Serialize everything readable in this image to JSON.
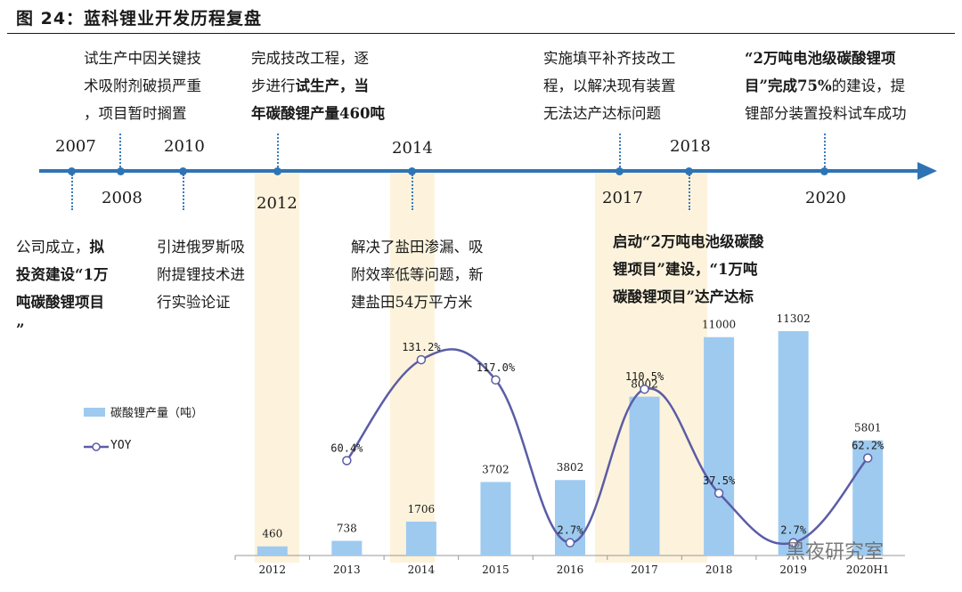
{
  "figure_title": "图 24：蓝科锂业开发历程复盘",
  "timeline": {
    "years_above": [
      {
        "label": "2007"
      },
      {
        "label": "2010"
      },
      {
        "label": "2014"
      },
      {
        "label": "2018"
      }
    ],
    "years_below": [
      {
        "label": "2008"
      },
      {
        "label": "2012"
      },
      {
        "label": "2017"
      },
      {
        "label": "2020"
      }
    ],
    "events_top": [
      {
        "lines": [
          "试生产中因关键技",
          "术吸附剂破损严重",
          "，项目暂时搁置"
        ]
      },
      {
        "lines": [
          "完成技改工程，逐",
          "步进行试生产，当",
          "年碳酸锂产量460吨"
        ]
      },
      {
        "lines": [
          "实施填平补齐技改工",
          "程，以解决现有装置",
          "无法达产达标问题"
        ]
      },
      {
        "lines": [
          "“2万吨电池级碳酸锂项",
          "目”完成75%的建设，提",
          "锂部分装置投料试车成功"
        ]
      }
    ],
    "events_bottom": [
      {
        "lines": [
          "公司成立，拟",
          "投资建设“1万",
          "吨碳酸锂项目",
          "”"
        ]
      },
      {
        "lines": [
          "引进俄罗斯吸",
          "附提锂技术进",
          "行实验论证"
        ]
      },
      {
        "lines": [
          "解决了盐田渗漏、吸",
          "附效率低等问题，新",
          "建盐田54万平方米"
        ]
      },
      {
        "lines": [
          "启动“2万吨电池级碳酸",
          "锂项目”建设，“1万吨",
          "碳酸锂项目”达产达标"
        ]
      }
    ]
  },
  "chart_data": {
    "type": "bar",
    "categories": [
      "2012",
      "2013",
      "2014",
      "2015",
      "2016",
      "2017",
      "2018",
      "2019",
      "2020H1"
    ],
    "series": [
      {
        "name": "碳酸锂产量（吨）",
        "type": "bar",
        "values": [
          460,
          738,
          1706,
          3702,
          3802,
          8002,
          11000,
          11302,
          5801
        ]
      },
      {
        "name": "YOY",
        "type": "line",
        "values": [
          null,
          60.4,
          131.2,
          117.0,
          2.7,
          110.5,
          37.5,
          2.7,
          62.2
        ],
        "labels": [
          "",
          "60.4%",
          "131.2%",
          "117.0%",
          "2.7%",
          "110.5%",
          "37.5%",
          "2.7%",
          "62.2%"
        ]
      }
    ],
    "legend": [
      "碳酸锂产量（吨）",
      "YOY"
    ],
    "legend_position": "left",
    "grid": false
  },
  "watermark": "黑夜研究室",
  "colors": {
    "axis": "#2e74b5",
    "bar": "#9ecaf0",
    "line": "#5b5da6",
    "shade": "#fdf3dc"
  }
}
